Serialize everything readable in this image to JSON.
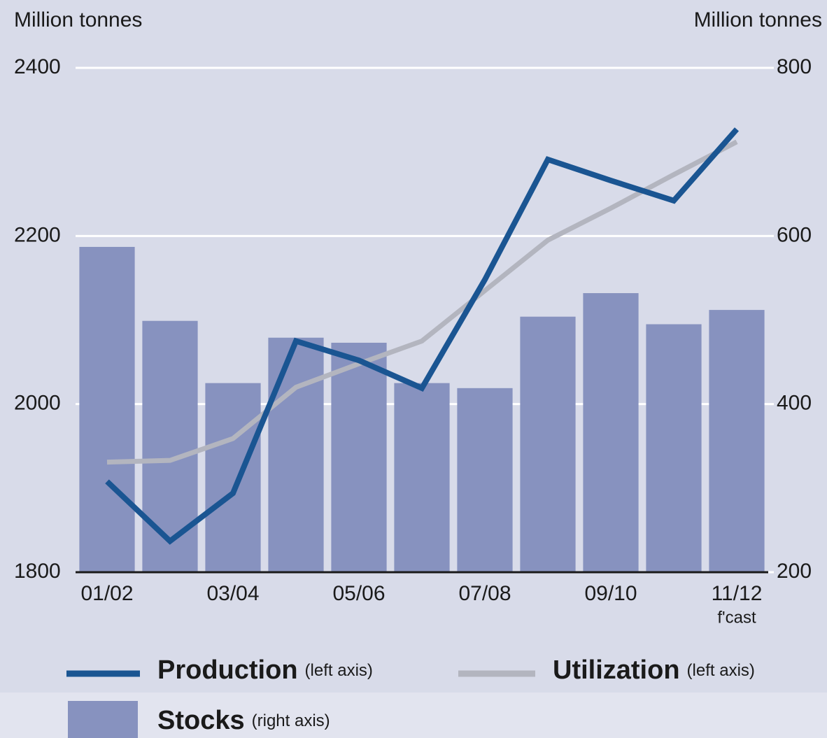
{
  "chart_data": {
    "type": "bar",
    "y_label": "Million tonnes",
    "y2_label": "Million tonnes",
    "categories": [
      "01/02",
      null,
      "03/04",
      null,
      "05/06",
      null,
      "07/08",
      null,
      "09/10",
      null,
      "11/12"
    ],
    "annotation": "f'cast",
    "ylim": [
      1800,
      2400
    ],
    "yticks": [
      1800,
      2000,
      2200,
      2400
    ],
    "y2lim": [
      200,
      800
    ],
    "y2ticks": [
      200,
      400,
      600,
      800
    ],
    "grid": true,
    "series": [
      {
        "name": "Production",
        "legend_note": "(left axis)",
        "type": "line",
        "color": "#1a5592",
        "axis": "y",
        "values": [
          1908,
          1837,
          1894,
          2075,
          2052,
          2019,
          2148,
          2291,
          2266,
          2242,
          2327
        ]
      },
      {
        "name": "Utilization",
        "legend_note": "(left axis)",
        "type": "line",
        "color": "#b3b5bf",
        "axis": "y",
        "values": [
          1931,
          1933,
          1959,
          2020,
          2048,
          2075,
          2135,
          2195,
          2233,
          2273,
          2312
        ]
      },
      {
        "name": "Stocks",
        "legend_note": "(right axis)",
        "type": "bar",
        "color": "#8792bf",
        "axis": "y2",
        "values": [
          587,
          499,
          425,
          479,
          473,
          425,
          419,
          504,
          532,
          495,
          512
        ]
      }
    ]
  }
}
